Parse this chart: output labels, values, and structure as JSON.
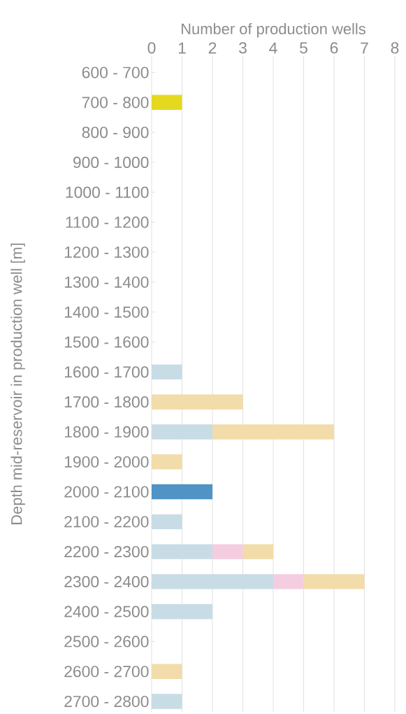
{
  "chart_data": {
    "type": "bar",
    "orientation": "horizontal",
    "stacked": true,
    "xlabel": "Number of production wells",
    "ylabel": "Depth mid-reservoir in production well [m]",
    "categories": [
      "600 - 700",
      "700 - 800",
      "800 - 900",
      "900 - 1000",
      "1000 - 1100",
      "1100 - 1200",
      "1200 - 1300",
      "1300 - 1400",
      "1400 - 1500",
      "1500 - 1600",
      "1600 - 1700",
      "1700 - 1800",
      "1800 - 1900",
      "1900 - 2000",
      "2000 - 2100",
      "2100 - 2200",
      "2200 - 2300",
      "2300 - 2400",
      "2400 - 2500",
      "2500 - 2600",
      "2600 - 2700",
      "2700 - 2800"
    ],
    "series": [
      {
        "color": "#c8dce6",
        "values": [
          null,
          null,
          null,
          null,
          null,
          null,
          null,
          null,
          null,
          null,
          1,
          null,
          2,
          null,
          null,
          1,
          2,
          4,
          2,
          null,
          null,
          1
        ]
      },
      {
        "color": "#f5cde0",
        "values": [
          null,
          null,
          null,
          null,
          null,
          null,
          null,
          null,
          null,
          null,
          null,
          null,
          null,
          null,
          null,
          null,
          1,
          1,
          null,
          null,
          null,
          null
        ]
      },
      {
        "color": "#f2dcaa",
        "values": [
          null,
          null,
          null,
          null,
          null,
          null,
          null,
          null,
          null,
          null,
          null,
          3,
          4,
          1,
          null,
          null,
          1,
          2,
          null,
          null,
          1,
          null
        ]
      },
      {
        "color": "#e5d920",
        "values": [
          null,
          1,
          null,
          null,
          null,
          null,
          null,
          null,
          null,
          null,
          null,
          null,
          null,
          null,
          null,
          null,
          null,
          null,
          null,
          null,
          null,
          null
        ]
      },
      {
        "color": "#4f94c4",
        "values": [
          null,
          null,
          null,
          null,
          null,
          null,
          null,
          null,
          null,
          null,
          null,
          null,
          null,
          null,
          2,
          null,
          null,
          null,
          null,
          null,
          null,
          null
        ]
      }
    ],
    "xlim": [
      0,
      8
    ],
    "xticks": [
      0,
      1,
      2,
      3,
      4,
      5,
      6,
      7,
      8
    ],
    "grid": "x"
  }
}
